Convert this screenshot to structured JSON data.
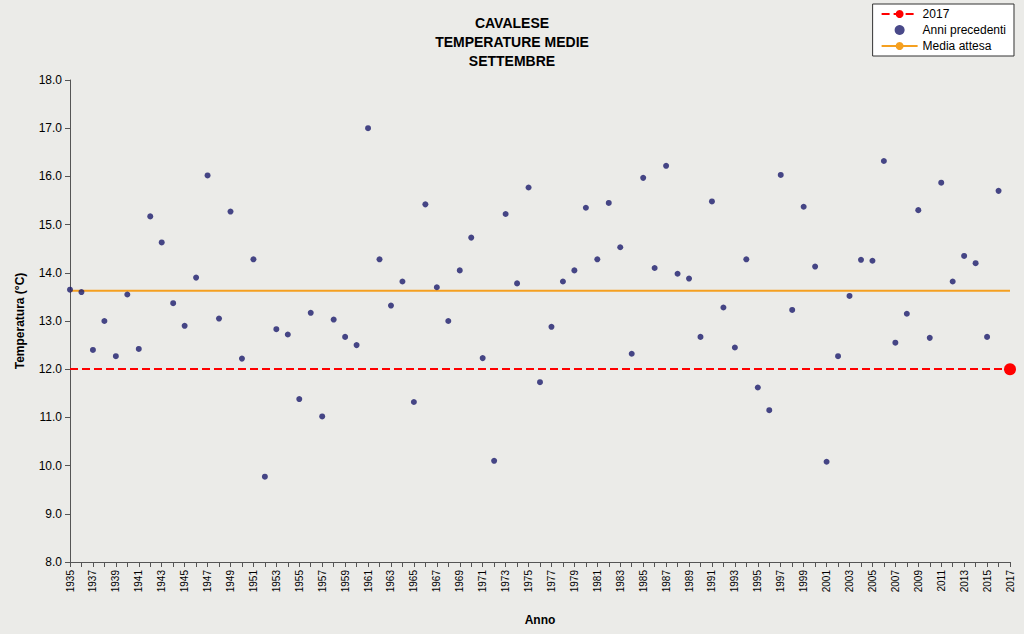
{
  "chart_data": {
    "type": "scatter",
    "title": "CAVALESE\nTEMPERATURE MEDIE\nSETTEMBRE",
    "x_label": "Anno",
    "y_label": "Temperatura (°C)",
    "categories": [
      "1935",
      null,
      "1937",
      null,
      "1939",
      null,
      "1941",
      null,
      "1943",
      null,
      "1945",
      null,
      "1947",
      null,
      "1949",
      null,
      "1951",
      null,
      "1953",
      null,
      "1955",
      null,
      "1957",
      null,
      "1959",
      null,
      "1961",
      null,
      "1963",
      null,
      "1965",
      null,
      "1967",
      null,
      "1969",
      null,
      "1971",
      null,
      "1973",
      null,
      "1975",
      null,
      "1977",
      null,
      "1979",
      null,
      "1981",
      null,
      "1983",
      null,
      "1985",
      null,
      "1987",
      null,
      "1989",
      null,
      "1991",
      null,
      "1993",
      null,
      "1995",
      null,
      "1997",
      null,
      "1999",
      null,
      "2001",
      null,
      "2003",
      null,
      "2005",
      null,
      "2007",
      null,
      "2009",
      null,
      "2011",
      null,
      "2013",
      null,
      "2015",
      null,
      "2017"
    ],
    "series": [
      {
        "name": "2017",
        "type": "line",
        "color": "#ff0000",
        "marker": "circle",
        "line_style": "dashed",
        "values": [
          null,
          null,
          null,
          null,
          null,
          null,
          null,
          null,
          null,
          null,
          null,
          null,
          null,
          null,
          null,
          null,
          null,
          null,
          null,
          null,
          null,
          null,
          null,
          null,
          null,
          null,
          null,
          null,
          null,
          null,
          null,
          null,
          null,
          null,
          null,
          null,
          null,
          null,
          null,
          null,
          null,
          null,
          null,
          null,
          null,
          null,
          null,
          null,
          null,
          null,
          null,
          null,
          null,
          null,
          null,
          null,
          null,
          null,
          null,
          null,
          null,
          null,
          null,
          null,
          null,
          null,
          null,
          null,
          null,
          null,
          null,
          null,
          null,
          null,
          null,
          null,
          null,
          null,
          null,
          null,
          null,
          null,
          12.0
        ]
      },
      {
        "name": "Anni precedenti",
        "type": "scatter",
        "color": "#1c1c6b",
        "marker": "circle",
        "values": [
          13.65,
          13.6,
          12.4,
          13.0,
          12.27,
          13.55,
          12.42,
          15.17,
          14.63,
          13.37,
          12.9,
          13.9,
          16.02,
          13.05,
          15.27,
          12.22,
          14.28,
          9.77,
          12.83,
          12.72,
          11.38,
          13.17,
          11.02,
          13.03,
          12.67,
          12.5,
          17.0,
          14.28,
          13.32,
          13.82,
          11.32,
          15.42,
          13.7,
          13.0,
          14.05,
          14.73,
          12.23,
          10.1,
          15.22,
          13.78,
          15.77,
          11.73,
          12.88,
          13.82,
          14.05,
          15.35,
          14.28,
          15.45,
          14.53,
          12.32,
          15.97,
          14.1,
          16.22,
          13.98,
          13.88,
          12.67,
          15.48,
          13.28,
          12.45,
          14.28,
          11.62,
          11.15,
          16.03,
          13.23,
          15.37,
          14.13,
          10.08,
          12.27,
          13.52,
          14.27,
          14.25,
          16.32,
          12.55,
          13.15,
          15.3,
          12.65,
          15.87,
          13.82,
          14.35,
          14.2,
          12.67,
          15.7,
          null
        ]
      },
      {
        "name": "Media attesa",
        "type": "hline",
        "color": "#f5a020",
        "value": 13.63
      }
    ],
    "ylim": [
      8,
      18
    ],
    "yticks": [
      {
        "value": 8,
        "label": "8.0"
      },
      {
        "value": 9,
        "label": "9.0"
      },
      {
        "value": 10,
        "label": "10.0"
      },
      {
        "value": 11,
        "label": "11.0"
      },
      {
        "value": 12,
        "label": "12.0"
      },
      {
        "value": 13,
        "label": "13.0"
      },
      {
        "value": 14,
        "label": "14.0"
      },
      {
        "value": 15,
        "label": "15.0"
      },
      {
        "value": 16,
        "label": "16.0"
      },
      {
        "value": 17,
        "label": "17.0"
      },
      {
        "value": 18,
        "label": "18.0"
      }
    ],
    "grid": false,
    "legend": "top-right"
  }
}
